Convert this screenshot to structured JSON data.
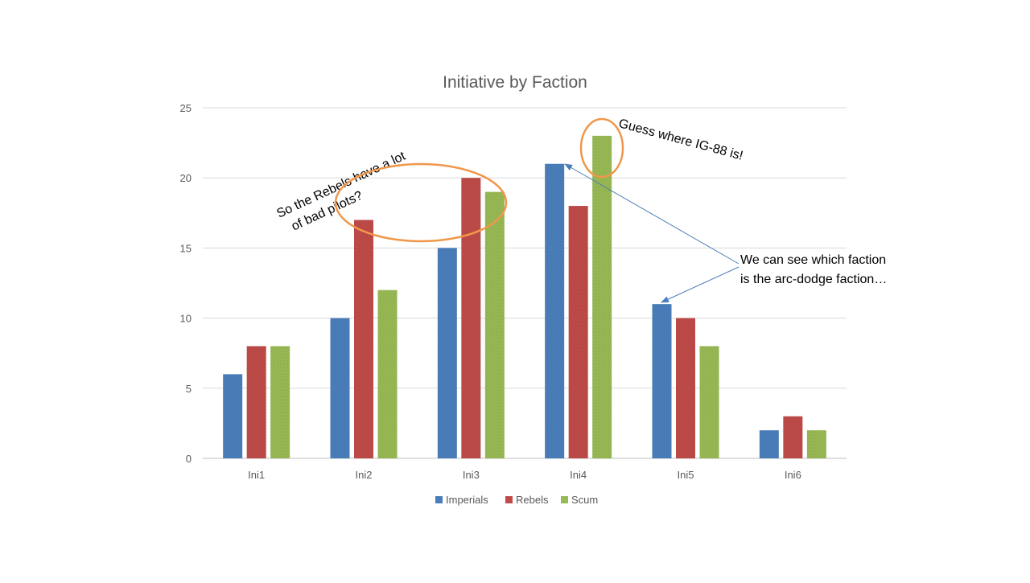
{
  "chart_data": {
    "type": "bar",
    "title": "Initiative by Faction",
    "categories": [
      "Ini1",
      "Ini2",
      "Ini3",
      "Ini4",
      "Ini5",
      "Ini6"
    ],
    "series": [
      {
        "name": "Imperials",
        "values": [
          6,
          10,
          15,
          21,
          11,
          2
        ],
        "color": "#4a7ebb"
      },
      {
        "name": "Rebels",
        "values": [
          8,
          17,
          20,
          18,
          10,
          3
        ],
        "color": "#be4b48"
      },
      {
        "name": "Scum",
        "values": [
          8,
          12,
          19,
          23,
          8,
          2
        ],
        "color": "#98b954"
      }
    ],
    "ylim": [
      0,
      25
    ],
    "yticks": [
      "0",
      "5",
      "10",
      "15",
      "20",
      "25"
    ],
    "grid": true,
    "legend": "bottom",
    "annotations": {
      "rebels_lines": [
        "So the Rebels have a lot",
        "of bad pilots?"
      ],
      "ig88": "Guess where IG-88 is!",
      "arc_dodge_lines": [
        "We can see which faction",
        "is the arc-dodge faction…"
      ],
      "highlight_color": "#f0974b",
      "arrow_color": "#4a7ebb"
    }
  }
}
